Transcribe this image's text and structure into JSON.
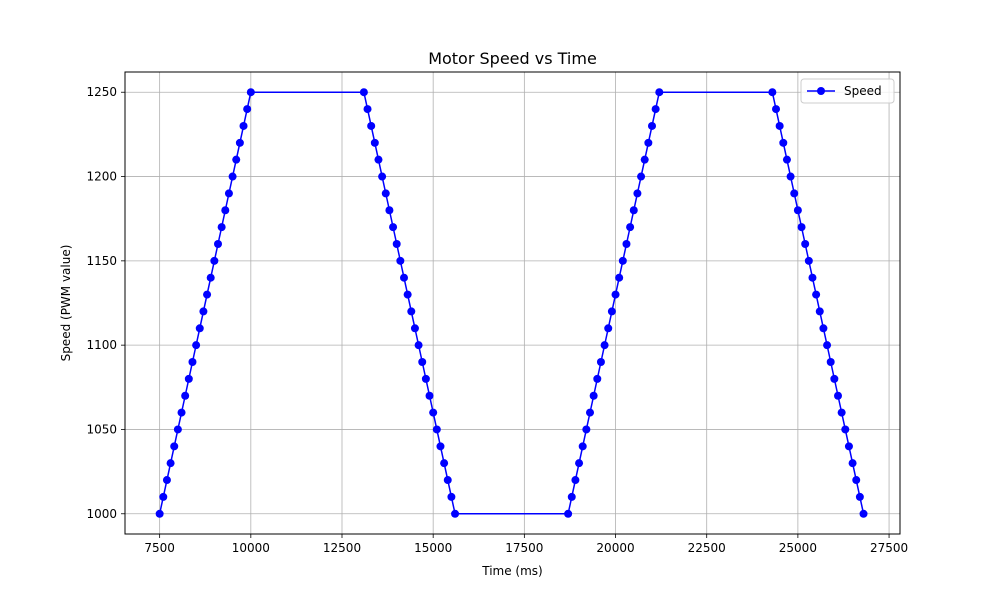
{
  "chart_data": {
    "type": "line",
    "title": "Motor Speed vs Time",
    "xlabel": "Time (ms)",
    "ylabel": "Speed (PWM value)",
    "xlim": [
      6550,
      27800
    ],
    "ylim": [
      988,
      1262
    ],
    "xticks": [
      7500,
      10000,
      12500,
      15000,
      17500,
      20000,
      22500,
      25000,
      27500
    ],
    "yticks": [
      1000,
      1050,
      1100,
      1150,
      1200,
      1250
    ],
    "grid": true,
    "legend_position": "upper right",
    "series": [
      {
        "name": "Speed",
        "color": "#0000ff",
        "marker": "circle",
        "x": [
          7500,
          7600,
          7700,
          7800,
          7900,
          8000,
          8100,
          8200,
          8300,
          8400,
          8500,
          8600,
          8700,
          8800,
          8900,
          9000,
          9100,
          9200,
          9300,
          9400,
          9500,
          9600,
          9700,
          9800,
          9900,
          10000,
          13100,
          13200,
          13300,
          13400,
          13500,
          13600,
          13700,
          13800,
          13900,
          14000,
          14100,
          14200,
          14300,
          14400,
          14500,
          14600,
          14700,
          14800,
          14900,
          15000,
          15100,
          15200,
          15300,
          15400,
          15500,
          15600,
          18700,
          18800,
          18900,
          19000,
          19100,
          19200,
          19300,
          19400,
          19500,
          19600,
          19700,
          19800,
          19900,
          20000,
          20100,
          20200,
          20300,
          20400,
          20500,
          20600,
          20700,
          20800,
          20900,
          21000,
          21100,
          21200,
          24300,
          24400,
          24500,
          24600,
          24700,
          24800,
          24900,
          25000,
          25100,
          25200,
          25300,
          25400,
          25500,
          25600,
          25700,
          25800,
          25900,
          26000,
          26100,
          26200,
          26300,
          26400,
          26500,
          26600,
          26700,
          26800
        ],
        "y": [
          1000,
          1010,
          1020,
          1030,
          1040,
          1050,
          1060,
          1070,
          1080,
          1090,
          1100,
          1110,
          1120,
          1130,
          1140,
          1150,
          1160,
          1170,
          1180,
          1190,
          1200,
          1210,
          1220,
          1230,
          1240,
          1250,
          1250,
          1240,
          1230,
          1220,
          1210,
          1200,
          1190,
          1180,
          1170,
          1160,
          1150,
          1140,
          1130,
          1120,
          1110,
          1100,
          1090,
          1080,
          1070,
          1060,
          1050,
          1040,
          1030,
          1020,
          1010,
          1000,
          1000,
          1010,
          1020,
          1030,
          1040,
          1050,
          1060,
          1070,
          1080,
          1090,
          1100,
          1110,
          1120,
          1130,
          1140,
          1150,
          1160,
          1170,
          1180,
          1190,
          1200,
          1210,
          1220,
          1230,
          1240,
          1250,
          1250,
          1240,
          1230,
          1220,
          1210,
          1200,
          1190,
          1180,
          1170,
          1160,
          1150,
          1140,
          1130,
          1120,
          1110,
          1100,
          1090,
          1080,
          1070,
          1060,
          1050,
          1040,
          1030,
          1020,
          1010,
          1000
        ]
      }
    ]
  }
}
